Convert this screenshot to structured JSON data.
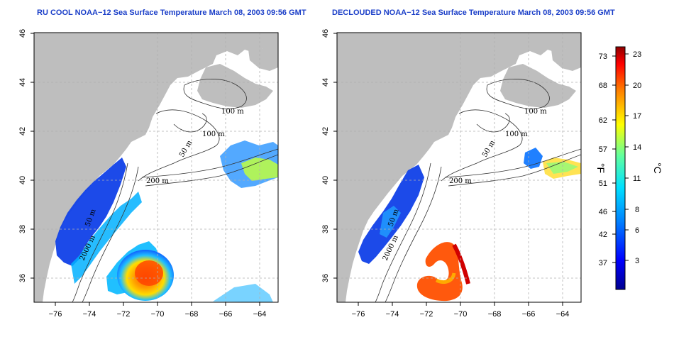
{
  "panels": [
    {
      "title": "RU COOL NOAA−12 Sea Surface Temperature March 08, 2003 09:56 GMT",
      "x_ticks": [
        "−76",
        "−74",
        "−72",
        "−70",
        "−68",
        "−66",
        "−64"
      ],
      "y_ticks": [
        "36",
        "38",
        "40",
        "42",
        "44",
        "46"
      ]
    },
    {
      "title": "DECLOUDED NOAA−12 Sea Surface Temperature March 08, 2003 09:56 GMT",
      "x_ticks": [
        "−76",
        "−74",
        "−72",
        "−70",
        "−68",
        "−66",
        "−64"
      ],
      "y_ticks": [
        "36",
        "38",
        "40",
        "42",
        "44",
        "46"
      ]
    }
  ],
  "contour_labels": [
    "100 m",
    "100 m",
    "50 m",
    "200 m",
    "50 m",
    "2000 m"
  ],
  "colorbar": {
    "fahrenheit_label": "°F",
    "celsius_label": "°C",
    "fahrenheit_ticks": [
      "73",
      "68",
      "62",
      "57",
      "51",
      "46",
      "42",
      "37"
    ],
    "celsius_ticks": [
      "23",
      "20",
      "17",
      "14",
      "11",
      "8",
      "6",
      "3"
    ],
    "colors": [
      "#00008f",
      "#0000ff",
      "#0080ff",
      "#00e0ff",
      "#60ff9f",
      "#ffff00",
      "#ff8000",
      "#ff0000",
      "#8f0000"
    ]
  },
  "colors": {
    "land": "#bebebe",
    "title": "#1a3ec8",
    "grid": "#b0b0b0"
  }
}
